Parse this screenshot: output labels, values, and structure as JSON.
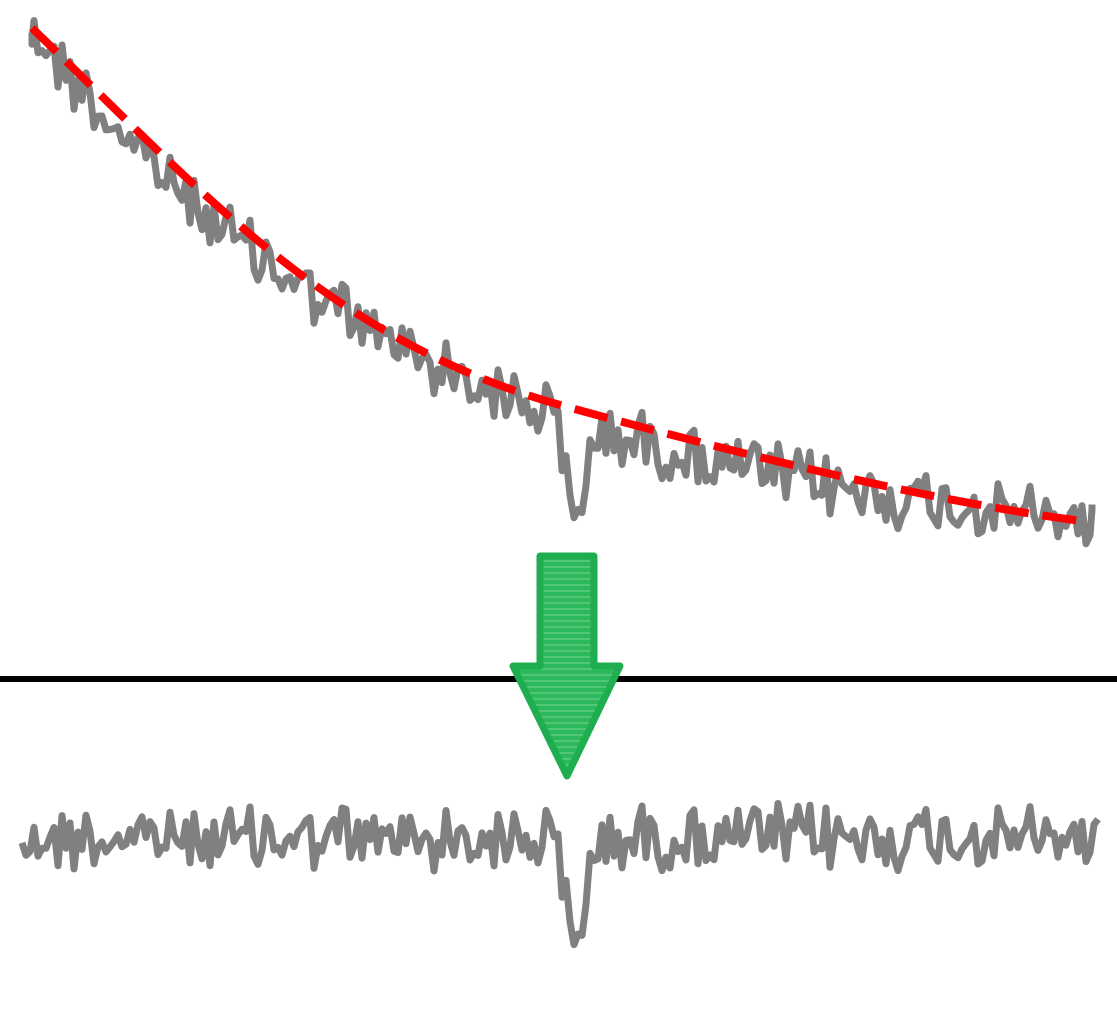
{
  "diagram": {
    "description_free": true,
    "colors": {
      "signal": "#808080",
      "trend_fit": "#ff0000",
      "arrow_fill": "#2eb85c",
      "arrow_stroke": "#1fae4f",
      "divider": "#000000",
      "background": "#ffffff"
    },
    "icons": {
      "arrow": "arrow-down-icon"
    },
    "panels": [
      {
        "name": "raw-signal-with-trend",
        "has_trend_line": true
      },
      {
        "name": "detrended-signal",
        "has_trend_line": false
      }
    ]
  }
}
